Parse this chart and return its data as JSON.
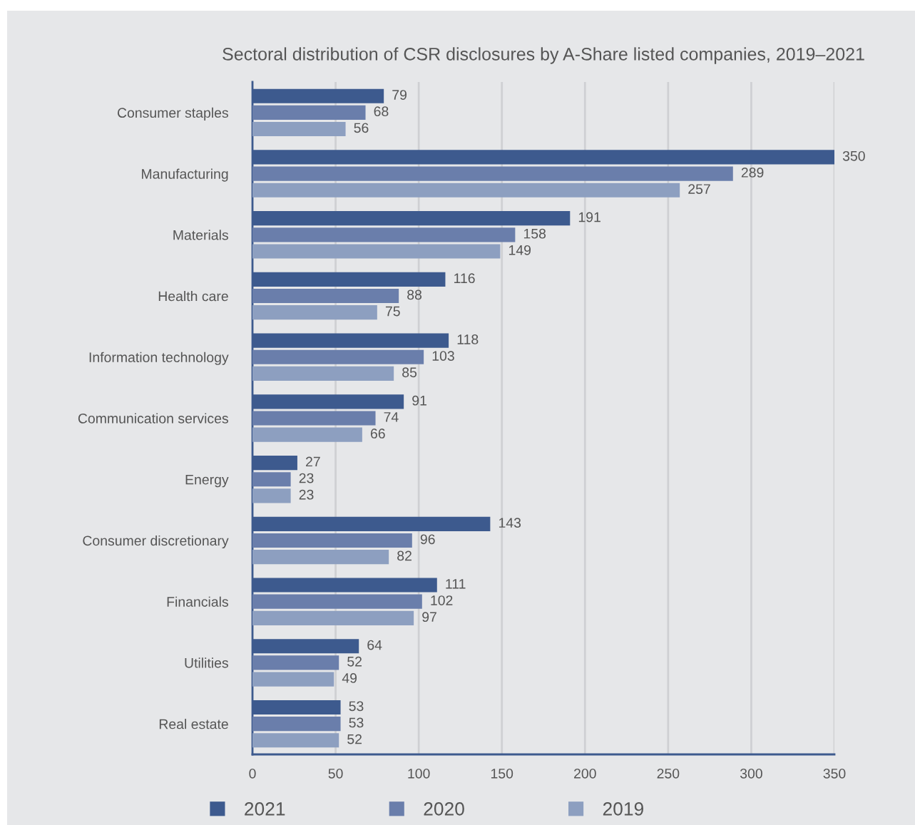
{
  "chart_data": {
    "type": "bar",
    "orientation": "horizontal",
    "title": "Sectoral distribution of CSR disclosures by A-Share listed companies, 2019–2021",
    "categories": [
      "Consumer staples",
      "Manufacturing",
      "Materials",
      "Health care",
      "Information technology",
      "Communication services",
      "Energy",
      "Consumer discretionary",
      "Financials",
      "Utilities",
      "Real estate"
    ],
    "series": [
      {
        "name": "2021",
        "color": "#3d5a8e",
        "values": [
          79,
          350,
          191,
          116,
          118,
          91,
          27,
          143,
          111,
          64,
          53
        ]
      },
      {
        "name": "2020",
        "color": "#6a7eab",
        "values": [
          68,
          289,
          158,
          88,
          103,
          74,
          23,
          96,
          102,
          52,
          53
        ]
      },
      {
        "name": "2019",
        "color": "#8d9fc0",
        "values": [
          56,
          257,
          149,
          75,
          85,
          66,
          23,
          82,
          97,
          49,
          52
        ]
      }
    ],
    "xlim": [
      0,
      350
    ],
    "xticks": [
      0,
      50,
      100,
      150,
      200,
      250,
      300,
      350
    ],
    "grid": "x",
    "legend": "bottom",
    "data_labels": true
  }
}
